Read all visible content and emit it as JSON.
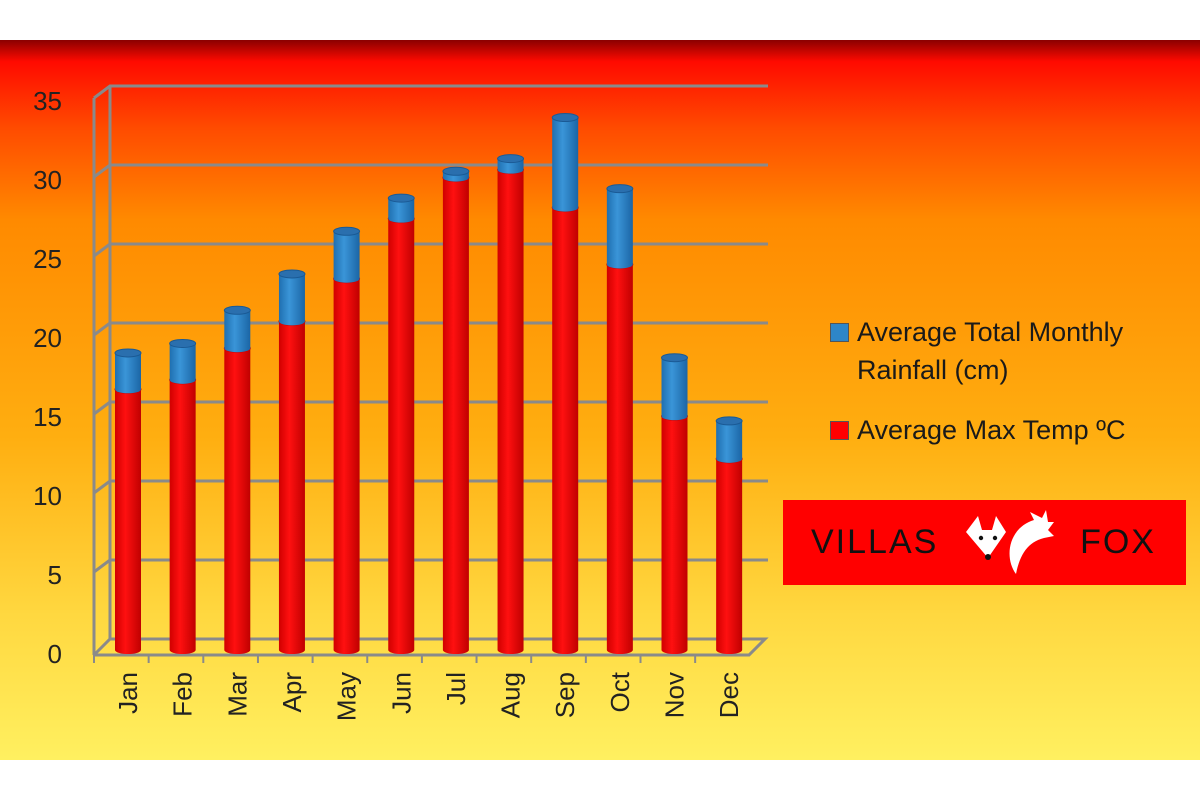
{
  "chart_data": {
    "type": "bar",
    "stacked": true,
    "style": "3d-cylinder",
    "categories": [
      "Jan",
      "Feb",
      "Mar",
      "Apr",
      "May",
      "Jun",
      "Jul",
      "Aug",
      "Sep",
      "Oct",
      "Nov",
      "Dec"
    ],
    "series": [
      {
        "name": "Average Max Temp ºC",
        "color": "#ff0000",
        "values": [
          16.5,
          17.1,
          19.1,
          20.8,
          23.5,
          27.3,
          29.9,
          30.4,
          28.0,
          24.4,
          14.8,
          12.1
        ]
      },
      {
        "name": "Average Total Monthly Rainfall (cm)",
        "color": "#2e86c8",
        "values": [
          2.3,
          2.3,
          2.4,
          3.0,
          3.0,
          1.3,
          0.4,
          0.7,
          5.7,
          4.8,
          3.7,
          2.4
        ]
      }
    ],
    "yticks": [
      "0",
      "5",
      "10",
      "15",
      "20",
      "25",
      "30",
      "35"
    ],
    "ylim": [
      0,
      35
    ],
    "grid": true,
    "legend_position": "right"
  },
  "legend": {
    "rain_label": "Average Total Monthly Rainfall (cm)",
    "temp_label": "Average Max Temp ºC"
  },
  "logo": {
    "left": "VILLAS",
    "right": "FOX"
  }
}
